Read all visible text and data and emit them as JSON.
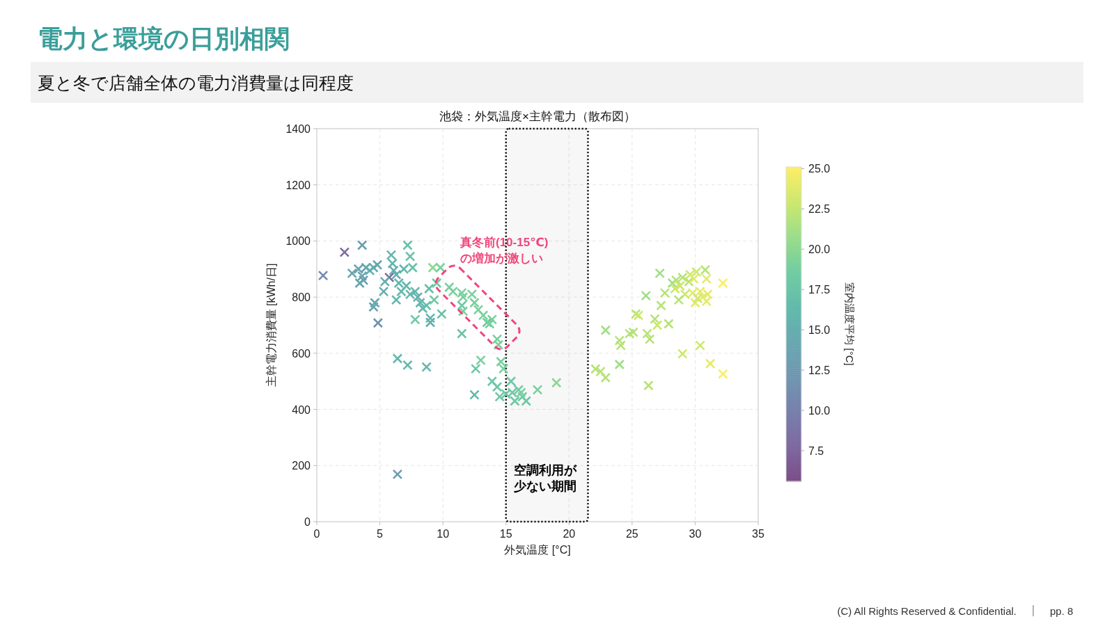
{
  "chart_data": {
    "type": "scatter",
    "title": "電力と環境の日別相関",
    "subtitle": "夏と冬で店舗全体の電力消費量は同程度",
    "xlabel": "外気温度 [°C]",
    "ylabel": "主幹電力消費量 [kWh/日]",
    "clabel": "室内温度平均 [°C]",
    "annotations": [
      "池袋：外気温度×主幹電力（散布図）",
      "真冬前(10-15℃)の増加が激しい",
      "(C) All Rights Reserved & Confidential.",
      "pp. 8"
    ],
    "x": [
      0.5,
      2.2,
      3.6,
      2.8,
      3.3,
      3.6,
      3.9,
      4.2,
      3.7,
      4.5,
      4.8,
      3.4,
      4.6,
      4.5,
      4.85,
      5.75,
      5.4,
      5.3,
      5.9,
      6.0,
      6.1,
      6.3,
      6.5,
      6.7,
      6.3,
      6.9,
      7.2,
      7.4,
      7.6,
      7.1,
      7.4,
      7.8,
      8.0,
      8.2,
      8.4,
      7.8,
      9.0,
      9.0,
      8.7,
      8.9,
      9.2,
      9.8,
      9.5,
      9.3,
      9.9,
      6.4,
      7.2,
      8.7,
      6.4,
      10.5,
      10.8,
      11.5,
      11.6,
      11.5,
      11.6,
      11.5,
      12.3,
      12.5,
      12.8,
      13.2,
      13.5,
      13.7,
      13.9,
      14.3,
      14.4,
      12.6,
      13.0,
      12.5,
      13.9,
      14.3,
      14.5,
      14.6,
      14.8,
      15.0,
      15.4,
      15.5,
      15.7,
      16.0,
      16.3,
      16.6,
      16.2,
      17.5,
      19.0,
      22.1,
      22.5,
      22.9,
      22.9,
      24.0,
      24.0,
      24.1,
      24.8,
      25.1,
      25.3,
      25.5,
      26.1,
      26.2,
      26.4,
      26.3,
      26.8,
      27.0,
      27.2,
      27.3,
      27.6,
      27.9,
      28.2,
      28.5,
      28.8,
      29.0,
      29.2,
      28.7,
      28.4,
      29.5,
      29.0,
      29.6,
      29.9,
      30.1,
      29.8,
      30.0,
      30.4,
      30.6,
      30.2,
      30.4,
      30.8,
      30.9,
      31.0,
      30.9,
      31.2,
      32.2,
      32.2
    ],
    "values": [
      877,
      960,
      985,
      885,
      900,
      875,
      905,
      895,
      860,
      905,
      915,
      850,
      780,
      765,
      708,
      870,
      855,
      820,
      950,
      920,
      895,
      880,
      850,
      820,
      790,
      900,
      985,
      945,
      905,
      840,
      810,
      820,
      800,
      780,
      760,
      720,
      710,
      725,
      770,
      830,
      905,
      905,
      850,
      790,
      740,
      581,
      558,
      551,
      169,
      835,
      820,
      815,
      800,
      770,
      750,
      670,
      810,
      780,
      755,
      735,
      710,
      705,
      720,
      650,
      630,
      545,
      575,
      452,
      500,
      480,
      445,
      570,
      545,
      455,
      500,
      460,
      430,
      470,
      445,
      430,
      460,
      470,
      495,
      544,
      535,
      513,
      682,
      645,
      560,
      628,
      670,
      675,
      740,
      735,
      805,
      670,
      650,
      485,
      722,
      700,
      885,
      770,
      815,
      705,
      850,
      860,
      840,
      870,
      810,
      790,
      830,
      855,
      598,
      880,
      865,
      890,
      815,
      780,
      820,
      800,
      795,
      628,
      897,
      865,
      810,
      785,
      563,
      850,
      526
    ],
    "cvalues": [
      11,
      8,
      13,
      14,
      14,
      14,
      14,
      15,
      13,
      15,
      14,
      14,
      14,
      14,
      12,
      8,
      15,
      15,
      16,
      16,
      15,
      15,
      16,
      16,
      16,
      16,
      17,
      17,
      17,
      16,
      16,
      16,
      15,
      16,
      16,
      18,
      15,
      16,
      17,
      17,
      20,
      19,
      18,
      18,
      17,
      16,
      16,
      16,
      13,
      19,
      19,
      19,
      19,
      18,
      19,
      17,
      19,
      19,
      19,
      19,
      18,
      19,
      19,
      19,
      19,
      18,
      19,
      16,
      18,
      18,
      18,
      19,
      19,
      18,
      18,
      18,
      18,
      18,
      18,
      18,
      19,
      19,
      20,
      22,
      22,
      22,
      21,
      22,
      21,
      22,
      22,
      22,
      22,
      23,
      21,
      22,
      22,
      22,
      22,
      23,
      21,
      22,
      22,
      22,
      21,
      22,
      23,
      22,
      23,
      22,
      23,
      22,
      23,
      23,
      24,
      23,
      24,
      24,
      24,
      24,
      23,
      23,
      22,
      24,
      24,
      24,
      24,
      25,
      25
    ],
    "xlim": [
      0,
      35
    ],
    "xticks": [
      0,
      5,
      10,
      15,
      20,
      25,
      30,
      35
    ],
    "ylim": [
      0,
      1400
    ],
    "yticks": [
      0,
      200,
      400,
      600,
      800,
      1000,
      1200,
      1400
    ],
    "clim": [
      5.6,
      25.1
    ],
    "cticks": [
      {
        "value": 7.5,
        "label": "7.5"
      },
      {
        "value": 10,
        "label": "10.0"
      },
      {
        "value": 12.5,
        "label": "12.5"
      },
      {
        "value": 15,
        "label": "15.0"
      },
      {
        "value": 17.5,
        "label": "17.5"
      },
      {
        "value": 20,
        "label": "20.0"
      },
      {
        "value": 22.5,
        "label": "22.5"
      },
      {
        "value": 25,
        "label": "25.0"
      }
    ],
    "bands": [
      {
        "axis": "x",
        "from": 15,
        "to": 21.5,
        "label": "空調利用が少ない期間",
        "color": "#000000"
      }
    ],
    "grid": true,
    "marker": "cross"
  }
}
